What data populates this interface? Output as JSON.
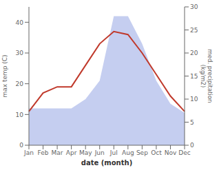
{
  "chart_data": {
    "type": "line",
    "xlabel": "date (month)",
    "ylabel": "max temp (C)",
    "y2label": "med. precipitation\n(kg/m2)",
    "categories": [
      "Jan",
      "Feb",
      "Mar",
      "Apr",
      "May",
      "Jun",
      "Jul",
      "Aug",
      "Sep",
      "Oct",
      "Nov",
      "Dec"
    ],
    "series": [
      {
        "name": "precipitation",
        "type": "area",
        "axis": "y2",
        "color": "#c5cef0",
        "values": [
          8,
          8,
          8,
          8,
          10,
          14,
          28,
          28,
          22,
          14,
          9,
          7
        ]
      },
      {
        "name": "max temp",
        "type": "line",
        "color": "#c0392b",
        "values": [
          11,
          17,
          19,
          19,
          26,
          33,
          37,
          36,
          30,
          23,
          16,
          11
        ]
      }
    ],
    "ylim": [
      0,
      45
    ],
    "yticks": [
      0,
      10,
      20,
      30,
      40
    ],
    "y2lim": [
      0,
      30
    ],
    "y2ticks": [
      0,
      5,
      10,
      15,
      20,
      25,
      30
    ],
    "grid": false
  }
}
